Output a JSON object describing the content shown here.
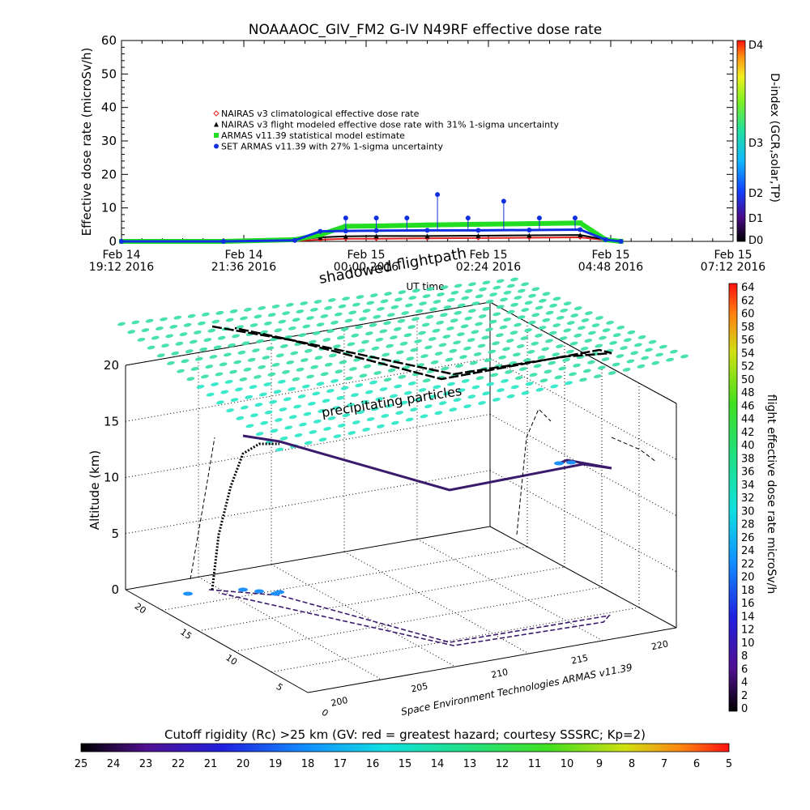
{
  "chart_data": [
    {
      "type": "line",
      "title": "NOAAAOC_GIV_FM2 G-IV    N49RF  effective dose rate",
      "ylabel": "Effective dose rate (microSv/h)",
      "xlabel": "UT time",
      "ylim": [
        0,
        60
      ],
      "yticks": [
        0,
        10,
        20,
        30,
        40,
        50,
        60
      ],
      "xticks": [
        {
          "l1": "Feb 14",
          "l2": "19:12 2016"
        },
        {
          "l1": "Feb 14",
          "l2": "21:36 2016"
        },
        {
          "l1": "Feb 15",
          "l2": "00:00 2016"
        },
        {
          "l1": "Feb 15",
          "l2": "02:24 2016"
        },
        {
          "l1": "Feb 15",
          "l2": "04:48 2016"
        },
        {
          "l1": "Feb 15",
          "l2": "07:12 2016"
        }
      ],
      "legend_position": "upper-left",
      "x_hours": [
        0,
        2,
        3.4,
        3.9,
        4.4,
        5.0,
        6.0,
        7.0,
        8.0,
        9.0,
        9.5,
        9.8
      ],
      "series": [
        {
          "name": "NAIRAS v3 climatological effective dose rate",
          "color": "#e02020",
          "marker": "diamond",
          "values": [
            0,
            0,
            0.2,
            0.5,
            0.8,
            0.8,
            0.9,
            1.0,
            1.1,
            1.2,
            0.4,
            0
          ]
        },
        {
          "name": "NAIRAS v3 flight modeled effective dose rate with 31% 1-sigma uncertainty",
          "color": "#000000",
          "marker": "triangle",
          "values": [
            0,
            0,
            0.5,
            1.2,
            1.5,
            1.6,
            1.6,
            1.7,
            1.8,
            1.9,
            0.5,
            0
          ]
        },
        {
          "name": "ARMAS v11.39 statistical model estimate",
          "color": "#22dd22",
          "marker": "square",
          "values": [
            0,
            0,
            0.5,
            2.0,
            4.5,
            4.6,
            4.9,
            5.1,
            5.3,
            5.5,
            0.5,
            0
          ]
        },
        {
          "name": "SET ARMAS v11.39 with 27% 1-sigma uncertainty",
          "color": "#1030e0",
          "marker": "circle",
          "values": [
            0,
            0,
            0.3,
            3.0,
            3.1,
            3.2,
            3.3,
            3.3,
            3.4,
            3.5,
            0.5,
            0
          ]
        }
      ],
      "spikes": [
        {
          "x": 4.4,
          "y": 7.0
        },
        {
          "x": 5.0,
          "y": 7.0
        },
        {
          "x": 5.6,
          "y": 7.0
        },
        {
          "x": 6.2,
          "y": 14.0
        },
        {
          "x": 6.8,
          "y": 7.0
        },
        {
          "x": 7.5,
          "y": 12.0
        },
        {
          "x": 8.2,
          "y": 7.0
        },
        {
          "x": 8.9,
          "y": 7.0
        }
      ],
      "colorbar": {
        "label": "D-index (GCR,solar,TP)",
        "ticks": [
          "D4",
          "D3",
          "D2",
          "D1",
          "D0"
        ]
      }
    },
    {
      "type": "scatter",
      "zlabel": "Altitude (km)",
      "zticks": [
        0,
        5,
        10,
        15,
        20
      ],
      "xticks": [
        200,
        205,
        210,
        215,
        220
      ],
      "yticks": [
        0,
        5,
        10,
        15,
        20
      ],
      "annotations": [
        "shadowed flightpath",
        "precipitating particles"
      ],
      "credit": "Space Environment Technologies ARMAS v11.39",
      "colorbar_right": {
        "label": "flight effective dose rate microSv/h",
        "ticks": [
          0,
          2,
          4,
          6,
          8,
          10,
          12,
          14,
          16,
          18,
          20,
          22,
          24,
          26,
          28,
          30,
          32,
          34,
          36,
          38,
          40,
          42,
          44,
          46,
          48,
          50,
          52,
          54,
          56,
          58,
          60,
          62,
          64
        ]
      },
      "colorbar_bottom": {
        "title": "Cutoff rigidity (Rc) >25 km (GV: red = greatest hazard; courtesy SSSRC; Kp=2)",
        "ticks": [
          25,
          24,
          23,
          22,
          21,
          20,
          19,
          18,
          17,
          16,
          15,
          14,
          13,
          12,
          11,
          10,
          9,
          8,
          7,
          6,
          5
        ]
      }
    }
  ]
}
